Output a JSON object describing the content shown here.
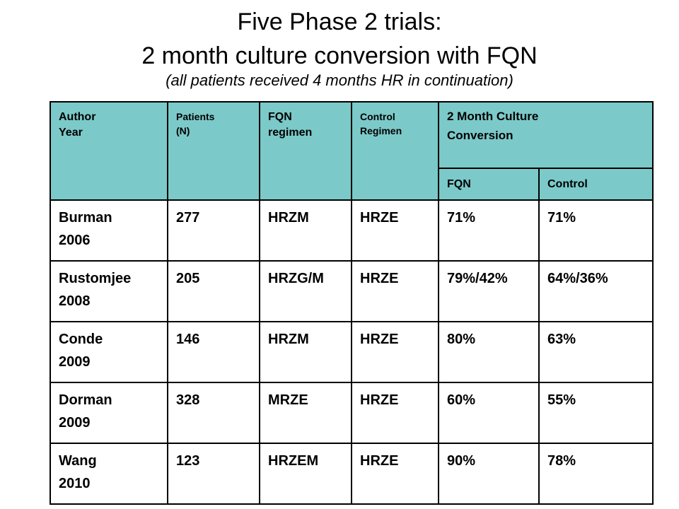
{
  "title": {
    "line1": "Five Phase 2 trials:",
    "line2": "2 month culture conversion with FQN",
    "subtitle": "(all patients received 4 months HR in continuation)"
  },
  "table": {
    "headers": {
      "author": "Author",
      "year": "Year",
      "patients": "Patients",
      "patients_n": "(N)",
      "fqn_regimen_1": "FQN",
      "fqn_regimen_2": "regimen",
      "control_regimen_1": "Control",
      "control_regimen_2": "Regimen",
      "conversion_1": "2 Month Culture",
      "conversion_2": "Conversion",
      "sub_fqn": "FQN",
      "sub_control": "Control"
    },
    "header_color": "#7cc9c9",
    "rows": [
      {
        "author": "Burman",
        "year": "2006",
        "patients": "277",
        "fqn_regimen": "HRZM",
        "control_regimen": "HRZE",
        "fqn": "71%",
        "control": "71%"
      },
      {
        "author": "Rustomjee",
        "year": "2008",
        "patients": "205",
        "fqn_regimen": "HRZG/M",
        "control_regimen": "HRZE",
        "fqn": "79%/42%",
        "control": "64%/36%"
      },
      {
        "author": "Conde",
        "year": "2009",
        "patients": "146",
        "fqn_regimen": "HRZM",
        "control_regimen": "HRZE",
        "fqn": "80%",
        "control": "63%"
      },
      {
        "author": "Dorman",
        "year": "2009",
        "patients": "328",
        "fqn_regimen": "MRZE",
        "control_regimen": "HRZE",
        "fqn": "60%",
        "control": "55%"
      },
      {
        "author": "Wang",
        "year": "2010",
        "patients": "123",
        "fqn_regimen": "HRZEM",
        "control_regimen": "HRZE",
        "fqn": "90%",
        "control": "78%"
      }
    ]
  }
}
